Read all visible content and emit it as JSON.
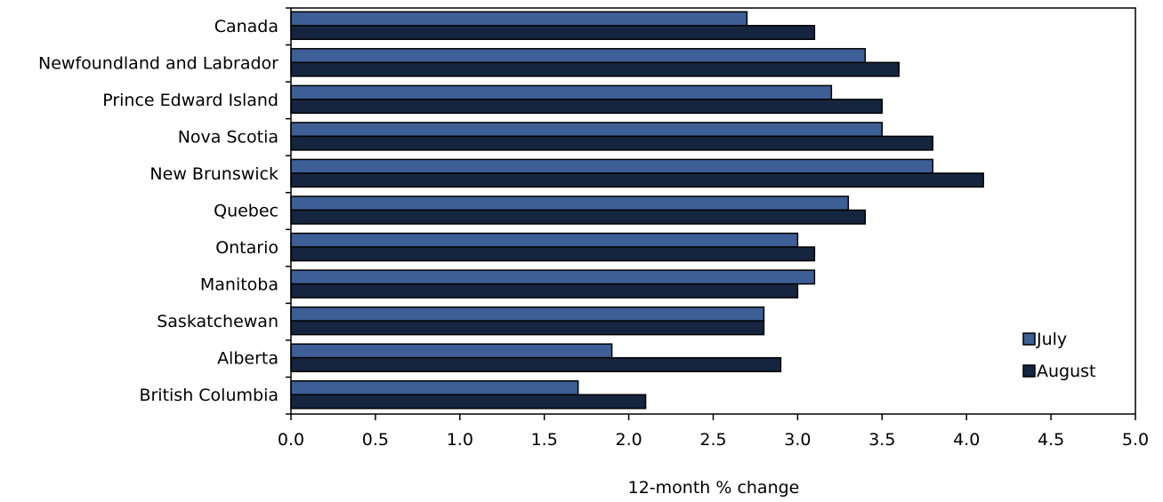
{
  "chart_data": {
    "type": "bar",
    "orientation": "horizontal",
    "categories": [
      "Canada",
      "Newfoundland and Labrador",
      "Prince Edward Island",
      "Nova Scotia",
      "New Brunswick",
      "Quebec",
      "Ontario",
      "Manitoba",
      "Saskatchewan",
      "Alberta",
      "British Columbia"
    ],
    "series": [
      {
        "name": "July",
        "color": "#3d5e96",
        "values": [
          2.7,
          3.4,
          3.2,
          3.5,
          3.8,
          3.3,
          3.0,
          3.1,
          2.8,
          1.9,
          1.7
        ]
      },
      {
        "name": "August",
        "color": "#15253f",
        "values": [
          3.1,
          3.6,
          3.5,
          3.8,
          4.1,
          3.4,
          3.1,
          3.0,
          2.8,
          2.9,
          2.1
        ]
      }
    ],
    "x_ticks": [
      "0.0",
      "0.5",
      "1.0",
      "1.5",
      "2.0",
      "2.5",
      "3.0",
      "3.5",
      "4.0",
      "4.5",
      "5.0"
    ],
    "xlim": [
      0,
      5
    ],
    "xlabel": "12-month % change",
    "title": "",
    "grid": false,
    "legend_position": "bottom-right"
  }
}
